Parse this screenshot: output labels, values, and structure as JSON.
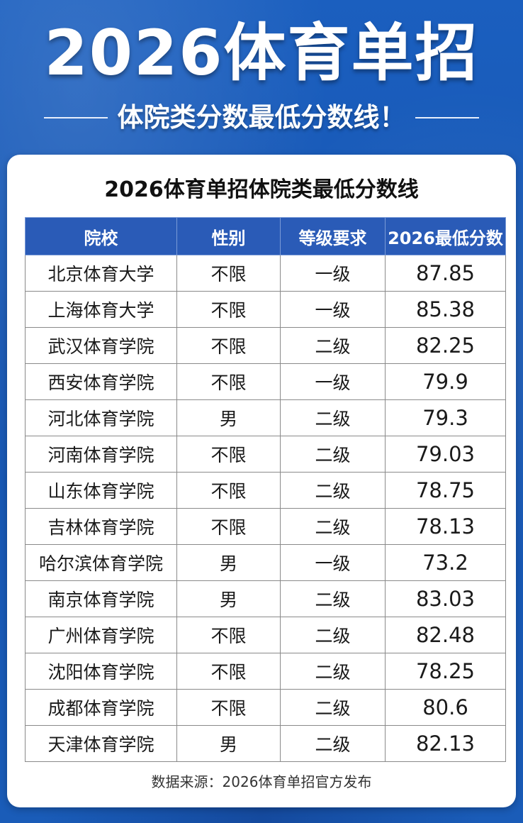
{
  "header": {
    "title": "2026体育单招",
    "subtitle": "体院类分数最低分数线！"
  },
  "table": {
    "title": "2026体育单招体院类最低分数线",
    "columns": [
      "院校",
      "性别",
      "等级要求",
      "2026最低分数"
    ],
    "rows": [
      {
        "school": "北京体育大学",
        "gender": "不限",
        "level": "一级",
        "score": "87.85"
      },
      {
        "school": "上海体育大学",
        "gender": "不限",
        "level": "一级",
        "score": "85.38"
      },
      {
        "school": "武汉体育学院",
        "gender": "不限",
        "level": "二级",
        "score": "82.25"
      },
      {
        "school": "西安体育学院",
        "gender": "不限",
        "level": "一级",
        "score": "79.9"
      },
      {
        "school": "河北体育学院",
        "gender": "男",
        "level": "二级",
        "score": "79.3"
      },
      {
        "school": "河南体育学院",
        "gender": "不限",
        "level": "二级",
        "score": "79.03"
      },
      {
        "school": "山东体育学院",
        "gender": "不限",
        "level": "二级",
        "score": "78.75"
      },
      {
        "school": "吉林体育学院",
        "gender": "不限",
        "level": "二级",
        "score": "78.13"
      },
      {
        "school": "哈尔滨体育学院",
        "gender": "男",
        "level": "一级",
        "score": "73.2"
      },
      {
        "school": "南京体育学院",
        "gender": "男",
        "level": "二级",
        "score": "83.03"
      },
      {
        "school": "广州体育学院",
        "gender": "不限",
        "level": "二级",
        "score": "82.48"
      },
      {
        "school": "沈阳体育学院",
        "gender": "不限",
        "level": "二级",
        "score": "78.25"
      },
      {
        "school": "成都体育学院",
        "gender": "不限",
        "level": "二级",
        "score": "80.6"
      },
      {
        "school": "天津体育学院",
        "gender": "男",
        "level": "二级",
        "score": "82.13"
      }
    ]
  },
  "footer": {
    "source": "数据来源：2026体育单招官方发布"
  },
  "colors": {
    "background": "#1b5fbf",
    "header_row": "#2a5bb7",
    "card": "#ffffff"
  }
}
